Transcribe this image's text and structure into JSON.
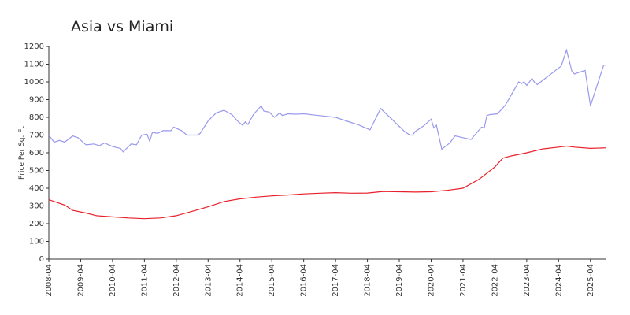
{
  "chart_data": {
    "type": "line",
    "title": "Asia vs Miami",
    "y_label": "Price Per Sq. Ft",
    "xlim": [
      "2008-04",
      "2025-10"
    ],
    "xticks": [
      "2008-04",
      "2009-04",
      "2010-04",
      "2011-04",
      "2012-04",
      "2013-04",
      "2014-04",
      "2015-04",
      "2016-04",
      "2017-04",
      "2018-04",
      "2019-04",
      "2020-04",
      "2021-04",
      "2022-04",
      "2023-04",
      "2024-04",
      "2025-04"
    ],
    "ylim": [
      0,
      1200
    ],
    "yticks": [
      0,
      100,
      200,
      300,
      400,
      500,
      600,
      700,
      800,
      900,
      1000,
      1100,
      1200
    ],
    "series": [
      {
        "color": "#9999ee",
        "x": [
          "2008-04",
          "2008-06",
          "2008-08",
          "2008-10",
          "2009-01",
          "2009-03",
          "2009-06",
          "2009-09",
          "2009-11",
          "2010-01",
          "2010-04",
          "2010-07",
          "2010-08",
          "2010-11",
          "2011-01",
          "2011-03",
          "2011-05",
          "2011-06",
          "2011-07",
          "2011-09",
          "2011-11",
          "2012-02",
          "2012-03",
          "2012-06",
          "2012-08",
          "2012-12",
          "2013-01",
          "2013-04",
          "2013-07",
          "2013-10",
          "2014-01",
          "2014-03",
          "2014-05",
          "2014-06",
          "2014-07",
          "2014-09",
          "2014-12",
          "2015-01",
          "2015-03",
          "2015-05",
          "2015-07",
          "2015-08",
          "2015-10",
          "2016-01",
          "2016-04",
          "2016-10",
          "2017-04",
          "2017-08",
          "2018-01",
          "2018-05",
          "2018-09",
          "2019-06",
          "2019-08",
          "2019-09",
          "2019-10",
          "2020-01",
          "2020-04",
          "2020-05",
          "2020-06",
          "2020-08",
          "2020-11",
          "2021-01",
          "2021-07",
          "2021-11",
          "2021-12",
          "2022-01",
          "2022-02",
          "2022-05",
          "2022-08",
          "2023-01",
          "2023-02",
          "2023-03",
          "2023-04",
          "2023-06",
          "2023-07",
          "2023-08",
          "2024-05",
          "2024-07",
          "2024-09",
          "2024-10",
          "2024-12",
          "2025-02",
          "2025-04",
          "2025-09",
          "2025-10"
        ],
        "values": [
          700,
          660,
          670,
          660,
          695,
          685,
          645,
          650,
          640,
          655,
          635,
          625,
          605,
          650,
          645,
          700,
          705,
          665,
          715,
          710,
          725,
          725,
          745,
          725,
          700,
          700,
          710,
          780,
          825,
          840,
          815,
          780,
          755,
          775,
          760,
          815,
          865,
          835,
          830,
          800,
          825,
          810,
          820,
          818,
          820,
          810,
          800,
          780,
          755,
          730,
          850,
          720,
          700,
          700,
          720,
          750,
          790,
          740,
          755,
          620,
          655,
          695,
          675,
          745,
          740,
          810,
          815,
          820,
          870,
          1000,
          990,
          1000,
          980,
          1020,
          995,
          985,
          1090,
          1180,
          1060,
          1045,
          1055,
          1065,
          865,
          1095,
          1095
        ]
      },
      {
        "color": "#e8202a",
        "x": [
          "2008-04",
          "2008-10",
          "2009-01",
          "2009-06",
          "2009-10",
          "2010-04",
          "2010-10",
          "2011-04",
          "2011-10",
          "2012-04",
          "2012-10",
          "2013-04",
          "2013-10",
          "2014-04",
          "2014-10",
          "2015-04",
          "2015-10",
          "2016-04",
          "2016-10",
          "2017-04",
          "2017-10",
          "2018-04",
          "2018-10",
          "2019-04",
          "2019-10",
          "2020-04",
          "2020-10",
          "2021-04",
          "2021-10",
          "2022-04",
          "2022-07",
          "2022-10",
          "2023-04",
          "2023-10",
          "2024-04",
          "2024-07",
          "2024-10",
          "2025-04",
          "2025-10"
        ],
        "values": [
          335,
          305,
          275,
          260,
          245,
          238,
          232,
          228,
          232,
          245,
          270,
          295,
          325,
          340,
          350,
          357,
          362,
          368,
          372,
          375,
          372,
          373,
          382,
          380,
          378,
          380,
          388,
          400,
          450,
          520,
          570,
          582,
          600,
          622,
          632,
          638,
          632,
          625,
          628
        ]
      }
    ]
  }
}
